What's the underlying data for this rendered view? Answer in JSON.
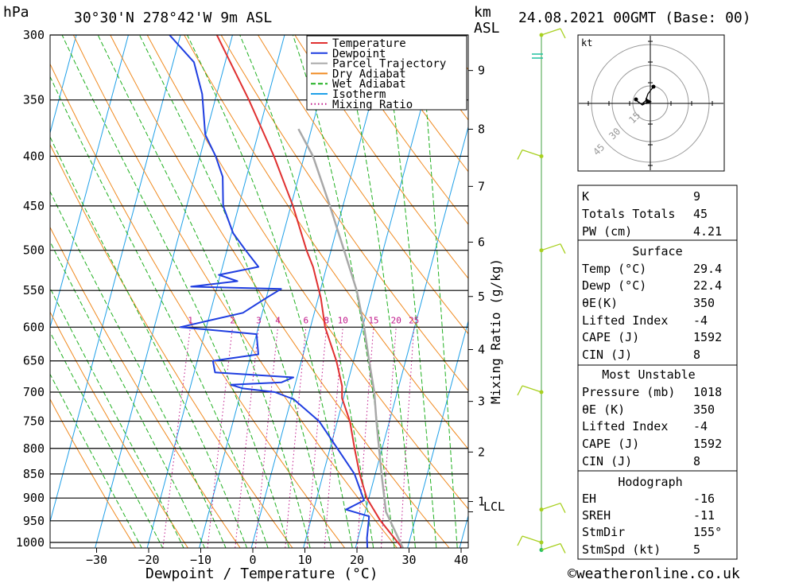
{
  "header": {
    "pressure_unit": "hPa",
    "location": "30°30'N 278°42'W 9m ASL",
    "km_label": "km",
    "asl_label": "ASL",
    "datetime": "24.08.2021 00GMT (Base: 00)"
  },
  "footer": {
    "credit": "©weatheronline.co.uk"
  },
  "colors": {
    "temperature": "#e03030",
    "dewpoint": "#1f3ee0",
    "parcel": "#a8a8a8",
    "dry_adiabat": "#f08a20",
    "wet_adiabat": "#20b020",
    "isotherm": "#1fa0e8",
    "mixing_ratio": "#c0178a",
    "wind": "#a8d020"
  },
  "chart_data": {
    "type": "line",
    "subtype": "skew-t log-p",
    "xlabel": "Dewpoint / Temperature (°C)",
    "ylabel_left": "hPa",
    "ylabel_right": "km ASL",
    "mixing_label": "Mixing Ratio (g/kg)",
    "xlim": [
      -40,
      40
    ],
    "ylim": [
      1018,
      300
    ],
    "x_ticks": [
      -30,
      -20,
      -10,
      0,
      10,
      20,
      30,
      40
    ],
    "p_ticks": [
      300,
      350,
      400,
      450,
      500,
      550,
      600,
      650,
      700,
      750,
      800,
      850,
      900,
      950,
      1000
    ],
    "km_ticks": [
      1,
      2,
      3,
      4,
      5,
      6,
      7,
      8,
      9
    ],
    "lcl_label": "LCL",
    "lcl_pressure": 930,
    "legend": [
      "Temperature",
      "Dewpoint",
      "Parcel Trajectory",
      "Dry Adiabat",
      "Wet Adiabat",
      "Isotherm",
      "Mixing Ratio"
    ],
    "mixing_ratio_labels": [
      "1",
      "2",
      "3",
      "4",
      "6",
      "8",
      "10",
      "15",
      "20",
      "25"
    ],
    "mixing_ratio_values": [
      1,
      2,
      3,
      4,
      6,
      8,
      10,
      15,
      20,
      25
    ],
    "series": [
      {
        "name": "Temperature",
        "points": [
          [
            1018,
            29.4
          ],
          [
            950,
            23.4
          ],
          [
            900,
            19.6
          ],
          [
            850,
            17.0
          ],
          [
            800,
            14.7
          ],
          [
            750,
            12.4
          ],
          [
            710,
            9.7
          ],
          [
            690,
            9.1
          ],
          [
            650,
            6.7
          ],
          [
            600,
            2.8
          ],
          [
            560,
            0.5
          ],
          [
            520,
            -2.6
          ],
          [
            500,
            -4.7
          ],
          [
            450,
            -9.6
          ],
          [
            400,
            -15.8
          ],
          [
            350,
            -23.5
          ],
          [
            300,
            -33.0
          ]
        ]
      },
      {
        "name": "Dewpoint",
        "points": [
          [
            1018,
            22.4
          ],
          [
            990,
            21.7
          ],
          [
            940,
            21.0
          ],
          [
            925,
            16.2
          ],
          [
            905,
            19.2
          ],
          [
            850,
            16.0
          ],
          [
            750,
            6.5
          ],
          [
            712,
            0.5
          ],
          [
            700,
            -3.5
          ],
          [
            694,
            -9.8
          ],
          [
            688,
            -12.3
          ],
          [
            684,
            -2.7
          ],
          [
            676,
            -0.7
          ],
          [
            668,
            -16.0
          ],
          [
            650,
            -17.0
          ],
          [
            640,
            -8.6
          ],
          [
            610,
            -10.0
          ],
          [
            600,
            -25.0
          ],
          [
            580,
            -13.7
          ],
          [
            560,
            -10.0
          ],
          [
            548,
            -7.6
          ],
          [
            545,
            -25.0
          ],
          [
            538,
            -16.4
          ],
          [
            530,
            -20.3
          ],
          [
            520,
            -13.1
          ],
          [
            500,
            -16.4
          ],
          [
            480,
            -19.7
          ],
          [
            450,
            -23.0
          ],
          [
            420,
            -24.6
          ],
          [
            400,
            -27.0
          ],
          [
            380,
            -30.1
          ],
          [
            345,
            -32.8
          ],
          [
            320,
            -36.0
          ],
          [
            300,
            -42.1
          ]
        ]
      },
      {
        "name": "Parcel Trajectory",
        "points": [
          [
            1018,
            29.4
          ],
          [
            930,
            24.0
          ],
          [
            850,
            21.2
          ],
          [
            800,
            19.4
          ],
          [
            750,
            17.5
          ],
          [
            700,
            15.6
          ],
          [
            650,
            13.0
          ],
          [
            600,
            10.3
          ],
          [
            550,
            7.0
          ],
          [
            500,
            2.5
          ],
          [
            450,
            -2.5
          ],
          [
            400,
            -8.3
          ],
          [
            375,
            -12.5
          ]
        ]
      }
    ],
    "wind_levels_hpa": [
      1018,
      1000,
      925,
      700,
      500,
      400,
      300
    ],
    "hodograph": {
      "unit": "kt",
      "ring_labels": [
        "15",
        "30",
        "45"
      ]
    }
  },
  "indices": {
    "K": {
      "label": "K",
      "value": "9"
    },
    "TT": {
      "label": "Totals Totals",
      "value": "45"
    },
    "PW": {
      "label": "PW (cm)",
      "value": "4.21"
    }
  },
  "surface": {
    "title": "Surface",
    "temp": {
      "label": "Temp (°C)",
      "value": "29.4"
    },
    "dewp": {
      "label": "Dewp (°C)",
      "value": "22.4"
    },
    "theta": {
      "label": "θE(K)",
      "value": "350"
    },
    "li": {
      "label": "Lifted Index",
      "value": "-4"
    },
    "cape": {
      "label": "CAPE (J)",
      "value": "1592"
    },
    "cin": {
      "label": "CIN (J)",
      "value": "8"
    }
  },
  "most_unstable": {
    "title": "Most Unstable",
    "pressure": {
      "label": "Pressure (mb)",
      "value": "1018"
    },
    "theta": {
      "label": "θE (K)",
      "value": "350"
    },
    "li": {
      "label": "Lifted Index",
      "value": "-4"
    },
    "cape": {
      "label": "CAPE (J)",
      "value": "1592"
    },
    "cin": {
      "label": "CIN (J)",
      "value": "8"
    }
  },
  "hodograph_table": {
    "title": "Hodograph",
    "eh": {
      "label": "EH",
      "value": "-16"
    },
    "srh": {
      "label": "SREH",
      "value": "-11"
    },
    "dir": {
      "label": "StmDir",
      "value": "155°"
    },
    "spd": {
      "label": "StmSpd (kt)",
      "value": "5"
    }
  }
}
